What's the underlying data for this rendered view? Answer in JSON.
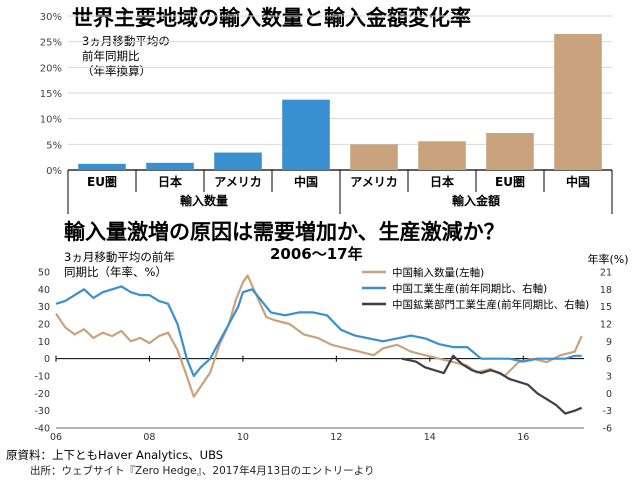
{
  "titles": {
    "top": "世界主要地域の輸入数量と輸入金額変化率",
    "bottom": "輸入量激増の原因は需要増加か、生産激減か？",
    "bottom_sub": "2006～17年"
  },
  "notes": {
    "top": "3ヵ月移動平均の\n前年同期比\n（年率換算）",
    "bottom": "3ヵ月移動平均の前年\n同期比（年率、%）"
  },
  "source": {
    "line1": "原資料：上下ともHaver Analytics、UBS",
    "line2": "出所：ウェブサイト『Zero Hedge』、2017年4月13日のエントリーより"
  },
  "colors": {
    "bar_volume": "#3a8fd0",
    "bar_value": "#c9a27e",
    "line_import": "#c9a27e",
    "line_industrial": "#3a8fd0",
    "line_mining": "#3f3f3f"
  },
  "chart_data": [
    {
      "type": "bar",
      "ylim": [
        0,
        30
      ],
      "yticks": [
        0,
        5,
        10,
        15,
        20,
        25,
        30
      ],
      "ytick_labels": [
        "0%",
        "5%",
        "10%",
        "15%",
        "20%",
        "25%",
        "30%"
      ],
      "grid": true,
      "categories": [
        "EU圏",
        "日本",
        "アメリカ",
        "中国",
        "アメリカ",
        "日本",
        "EU圏",
        "中国"
      ],
      "groups": [
        {
          "label": "輸入数量",
          "start": 0,
          "end": 3,
          "color": "#3a8fd0"
        },
        {
          "label": "輸入金額",
          "start": 4,
          "end": 7,
          "color": "#c9a27e"
        }
      ],
      "values": [
        1.2,
        1.4,
        3.4,
        13.7,
        5.0,
        5.6,
        7.2,
        26.5
      ]
    },
    {
      "type": "line",
      "x_tick_labels": [
        "06",
        "08",
        "10",
        "12",
        "14",
        "16"
      ],
      "x_ticks": [
        2006,
        2008,
        2010,
        2012,
        2014,
        2016
      ],
      "xlim": [
        2006,
        2017.3
      ],
      "ylim_left": [
        -40,
        50
      ],
      "yticks_left": [
        -40,
        -30,
        -20,
        -10,
        0,
        10,
        20,
        30,
        40,
        50
      ],
      "ylim_right": [
        -6,
        21
      ],
      "yticks_right": [
        -6,
        -3,
        0,
        3,
        6,
        9,
        12,
        15,
        18,
        21
      ],
      "ylabel_right": "年率(%)",
      "legend_position": "top-right",
      "series": [
        {
          "name": "中国輸入数量(左軸)",
          "axis": "left",
          "color": "#c9a27e",
          "x": [
            2006,
            2006.2,
            2006.4,
            2006.6,
            2006.8,
            2007,
            2007.2,
            2007.4,
            2007.6,
            2007.8,
            2008,
            2008.2,
            2008.4,
            2008.6,
            2008.8,
            2008.95,
            2009.1,
            2009.3,
            2009.5,
            2009.7,
            2009.85,
            2010,
            2010.1,
            2010.3,
            2010.5,
            2010.7,
            2011,
            2011.3,
            2011.6,
            2011.9,
            2012.2,
            2012.5,
            2012.8,
            2013,
            2013.3,
            2013.6,
            2013.9,
            2014.2,
            2014.5,
            2014.8,
            2015,
            2015.3,
            2015.6,
            2015.9,
            2016.2,
            2016.5,
            2016.8,
            2017.1,
            2017.25
          ],
          "y": [
            26,
            18,
            14,
            17,
            12,
            15,
            13,
            16,
            10,
            12,
            9,
            13,
            15,
            5,
            -10,
            -22,
            -16,
            -8,
            8,
            20,
            34,
            44,
            48,
            36,
            24,
            22,
            20,
            14,
            12,
            8,
            6,
            4,
            2,
            6,
            8,
            4,
            2,
            0,
            -2,
            -4,
            -8,
            -6,
            -10,
            -2,
            0,
            -2,
            2,
            4,
            13
          ]
        },
        {
          "name": "中国工業生産(前年同期比、右軸)",
          "axis": "right",
          "color": "#3a8fd0",
          "x": [
            2006,
            2006.2,
            2006.4,
            2006.6,
            2006.8,
            2007,
            2007.2,
            2007.4,
            2007.6,
            2007.8,
            2008,
            2008.2,
            2008.4,
            2008.6,
            2008.8,
            2008.95,
            2009.1,
            2009.3,
            2009.5,
            2009.7,
            2009.9,
            2010,
            2010.2,
            2010.4,
            2010.6,
            2010.9,
            2011.2,
            2011.5,
            2011.8,
            2012.1,
            2012.4,
            2012.7,
            2013,
            2013.3,
            2013.6,
            2013.9,
            2014.2,
            2014.5,
            2014.8,
            2015.1,
            2015.4,
            2015.7,
            2016,
            2016.3,
            2016.6,
            2016.9,
            2017.1,
            2017.25
          ],
          "y": [
            15.5,
            16,
            17,
            18,
            16.5,
            17.5,
            18,
            18.5,
            17.5,
            17,
            17,
            16,
            15.5,
            12,
            6,
            3,
            4.5,
            6,
            9,
            12,
            15,
            17.5,
            18,
            16,
            14,
            13.5,
            14,
            14,
            13.5,
            11,
            10,
            9.5,
            9,
            9.5,
            10,
            9.5,
            8.5,
            8,
            8,
            6,
            6,
            6,
            5.5,
            6,
            6,
            6,
            6.5,
            6.5
          ]
        },
        {
          "name": "中国鉱業部門工業生産(前年同期比、右軸)",
          "axis": "right",
          "color": "#3f3f3f",
          "x": [
            2013.4,
            2013.7,
            2013.9,
            2014.1,
            2014.3,
            2014.5,
            2014.7,
            2014.9,
            2015.1,
            2015.3,
            2015.5,
            2015.7,
            2015.9,
            2016.1,
            2016.3,
            2016.5,
            2016.7,
            2016.9,
            2017.1,
            2017.25
          ],
          "y": [
            6,
            5.5,
            4.5,
            4,
            3.5,
            6.5,
            5,
            4,
            3.5,
            4,
            3.5,
            2.5,
            2,
            1.5,
            0,
            -1,
            -2,
            -3.5,
            -3,
            -2.5
          ]
        }
      ]
    }
  ]
}
